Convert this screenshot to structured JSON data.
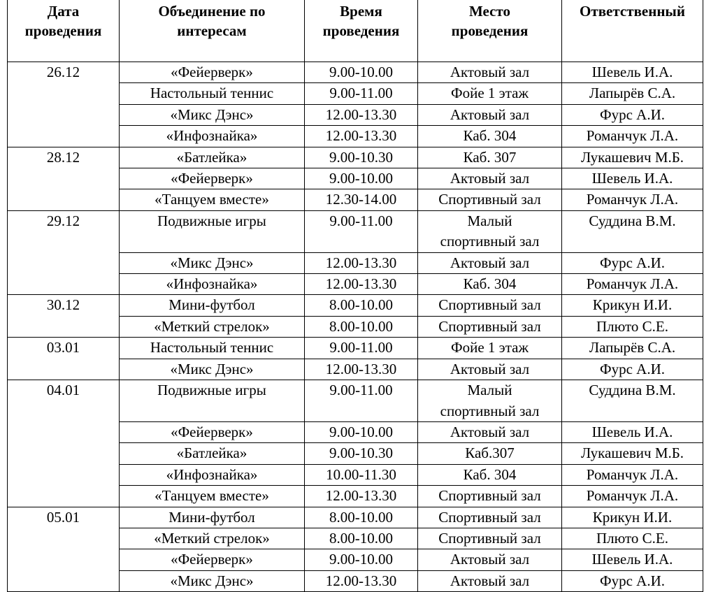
{
  "table": {
    "header": [
      [
        "Дата",
        "проведения"
      ],
      [
        "Объединение по",
        "интересам"
      ],
      [
        "Время",
        "проведения"
      ],
      [
        "Место",
        "проведения"
      ],
      [
        "Ответственный"
      ]
    ],
    "groups": [
      {
        "date": "26.12",
        "rows": [
          [
            "«Фейерверк»",
            "9.00-10.00",
            "Актовый зал",
            "Шевель И.А."
          ],
          [
            "Настольный теннис",
            "9.00-11.00",
            "Фойе 1 этаж",
            "Лапырёв С.А."
          ],
          [
            "«Микс Дэнс»",
            "12.00-13.30",
            "Актовый зал",
            "Фурс А.И."
          ],
          [
            "«Инфознайка»",
            "12.00-13.30",
            "Каб. 304",
            "Романчук Л.А."
          ]
        ]
      },
      {
        "date": "28.12",
        "rows": [
          [
            "«Батлейка»",
            "9.00-10.30",
            "Каб. 307",
            "Лукашевич М.Б."
          ],
          [
            "«Фейерверк»",
            "9.00-10.00",
            "Актовый зал",
            "Шевель И.А."
          ],
          [
            "«Танцуем вместе»",
            "12.30-14.00",
            "Спортивный зал",
            "Романчук Л.А."
          ]
        ]
      },
      {
        "date": "29.12",
        "rows": [
          [
            "Подвижные игры",
            "9.00-11.00",
            [
              "Малый",
              "спортивный зал"
            ],
            "Суддина В.М."
          ],
          [
            "«Микс Дэнс»",
            "12.00-13.30",
            "Актовый зал",
            "Фурс А.И."
          ],
          [
            "«Инфознайка»",
            "12.00-13.30",
            "Каб. 304",
            "Романчук Л.А."
          ]
        ]
      },
      {
        "date": "30.12",
        "rows": [
          [
            "Мини-футбол",
            "8.00-10.00",
            "Спортивный зал",
            "Крикун И.И."
          ],
          [
            "«Меткий стрелок»",
            "8.00-10.00",
            "Спортивный зал",
            "Плюто С.Е."
          ]
        ]
      },
      {
        "date": "03.01",
        "rows": [
          [
            "Настольный теннис",
            "9.00-11.00",
            "Фойе 1 этаж",
            "Лапырёв С.А."
          ],
          [
            "«Микс Дэнс»",
            "12.00-13.30",
            "Актовый зал",
            "Фурс А.И."
          ]
        ]
      },
      {
        "date": "04.01",
        "rows": [
          [
            "Подвижные игры",
            "9.00-11.00",
            [
              "Малый",
              "спортивный зал"
            ],
            "Суддина В.М."
          ],
          [
            "«Фейерверк»",
            "9.00-10.00",
            "Актовый зал",
            "Шевель И.А."
          ],
          [
            "«Батлейка»",
            "9.00-10.30",
            "Каб.307",
            "Лукашевич М.Б."
          ],
          [
            "«Инфознайка»",
            "10.00-11.30",
            "Каб. 304",
            "Романчук Л.А."
          ],
          [
            "«Танцуем вместе»",
            "12.00-13.30",
            "Спортивный зал",
            "Романчук Л.А."
          ]
        ]
      },
      {
        "date": "05.01",
        "rows": [
          [
            "Мини-футбол",
            "8.00-10.00",
            "Спортивный зал",
            "Крикун И.И."
          ],
          [
            "«Меткий стрелок»",
            "8.00-10.00",
            "Спортивный зал",
            "Плюто С.Е."
          ],
          [
            "«Фейерверк»",
            "9.00-10.00",
            "Актовый зал",
            "Шевель И.А."
          ],
          [
            "«Микс Дэнс»",
            "12.00-13.30",
            "Актовый зал",
            "Фурс А.И."
          ]
        ]
      }
    ]
  }
}
